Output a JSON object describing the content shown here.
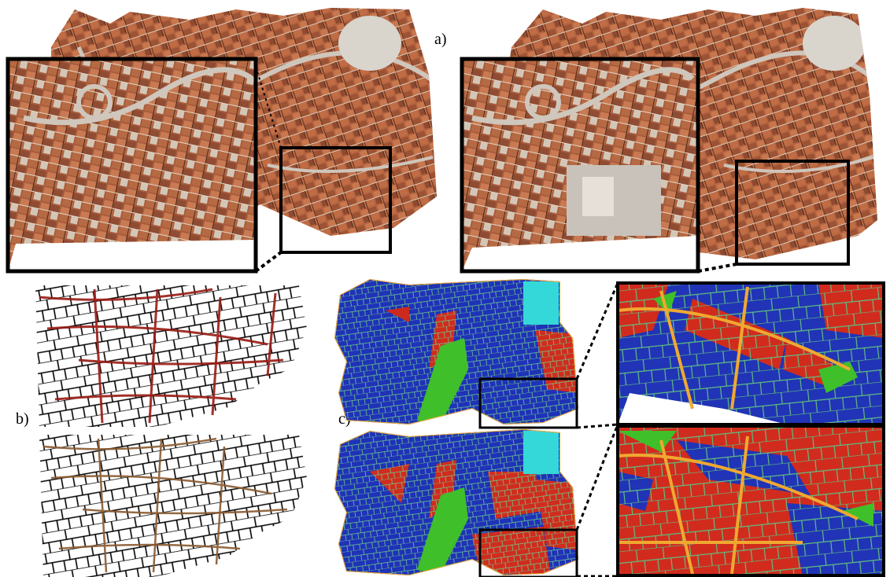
{
  "labels": {
    "a": "a)",
    "b": "b)",
    "c": "c)"
  },
  "colors": {
    "roof": "#b0633e",
    "roof_dark": "#7a3f28",
    "street": "#cfc6bc",
    "roof_light": "#d9b39a",
    "vegetation": "#6a7a3a",
    "block_blue": "#1c2fb4",
    "block_red": "#cc2a1e",
    "block_green": "#3fbf2a",
    "block_cyan": "#35d8d8",
    "road_orange": "#f0a830",
    "grid_line": "#5bbf7a",
    "street_black": "#000000",
    "street_red": "#9a1a14",
    "street_brown": "#8a5a30",
    "frame": "#000000"
  }
}
